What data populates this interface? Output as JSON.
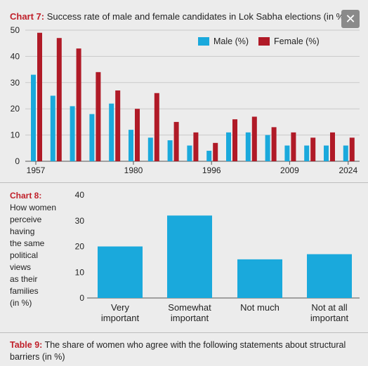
{
  "chart7": {
    "tag": "Chart 7:",
    "title": "Success rate of male and female candidates in Lok Sabha elections (in %)",
    "legend": [
      "Male (%)",
      "Female (%)"
    ],
    "close_icon": "close-icon"
  },
  "chart8": {
    "tag": "Chart 8:",
    "lines": [
      "How women",
      "perceive",
      "having",
      "the same",
      "political",
      "views",
      "as their",
      "families",
      "(in %)"
    ],
    "categories": [
      [
        "Very",
        "important"
      ],
      [
        "Somewhat",
        "important"
      ],
      [
        "Not much"
      ],
      [
        "Not at all",
        "important"
      ]
    ]
  },
  "table9": {
    "tag": "Table 9:",
    "text": "The share of women who agree with the following statements about structural barriers (in %)"
  },
  "colors": {
    "male": "#1aa9dc",
    "female": "#b01a27",
    "tag": "#c0202a"
  },
  "chart_data": [
    {
      "type": "bar",
      "title": "Success rate of male and female candidates in Lok Sabha elections (in %)",
      "x_tick_labels": [
        "1957",
        "1980",
        "1996",
        "2009",
        "2024"
      ],
      "series": [
        {
          "name": "Male (%)",
          "values": [
            33,
            25,
            21,
            18,
            22,
            12,
            9,
            8,
            6,
            4,
            11,
            11,
            10,
            6,
            6,
            6,
            6
          ]
        },
        {
          "name": "Female (%)",
          "values": [
            49,
            47,
            43,
            34,
            27,
            20,
            26,
            15,
            11,
            7,
            16,
            17,
            13,
            11,
            9,
            11,
            9
          ]
        }
      ],
      "ylim": [
        0,
        50
      ],
      "yticks": [
        0,
        10,
        20,
        30,
        40,
        50
      ],
      "grid": true,
      "legend_position": "top-right"
    },
    {
      "type": "bar",
      "categories": [
        "Very important",
        "Somewhat important",
        "Not much",
        "Not at all important"
      ],
      "values": [
        20,
        32,
        15,
        17
      ],
      "ylim": [
        0,
        40
      ],
      "yticks": [
        0,
        10,
        20,
        30,
        40
      ],
      "grid": false
    }
  ]
}
